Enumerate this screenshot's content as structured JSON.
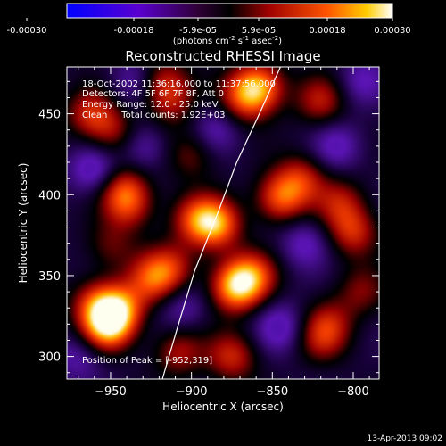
{
  "colorbar": {
    "ticks": [
      "-0.00030",
      "-0.00018",
      "-5.9e-05",
      "5.9e-05",
      "0.00018",
      "0.00030"
    ],
    "units_prefix": "(photons cm",
    "units_exp1": "-2",
    "units_mid": " s",
    "units_exp2": "-1",
    "units_mid2": " asec",
    "units_exp3": "-2",
    "units_suffix": ")",
    "range": [
      -0.0003,
      0.0003
    ]
  },
  "annotations": {
    "line1": "18-Oct-2002 11:36:16.000 to 11:37:56.000",
    "line2": "Detectors: 4F 5F 6F 7F 8F, Att 0",
    "line3": "Energy Range: 12.0 - 25.0 keV",
    "line4": "Clean     Total counts: 1.92E+03",
    "peak": "Position of Peak = [-952,319]"
  },
  "timestamp": "13-Apr-2013 09:02",
  "chart_data": {
    "type": "heatmap",
    "title": "Reconstructed RHESSI Image",
    "xlabel": "Heliocentric X (arcsec)",
    "ylabel": "Heliocentric Y (arcsec)",
    "xlim": [
      -977,
      -784
    ],
    "ylim": [
      286,
      479
    ],
    "xticks": [
      -950,
      -900,
      -850,
      -800
    ],
    "yticks": [
      300,
      350,
      400,
      450
    ],
    "xtick_labels": [
      "−950",
      "−900",
      "−850",
      "−800"
    ],
    "ytick_labels": [
      "300",
      "350",
      "400",
      "450"
    ],
    "colormap": "rhessi-blue-purple-red-yellow-white",
    "peak_position": [
      -952,
      319
    ],
    "limb_curve": [
      [
        -918,
        286
      ],
      [
        -908,
        320
      ],
      [
        -898,
        353
      ],
      [
        -884,
        388
      ],
      [
        -872,
        420
      ],
      [
        -858,
        450
      ],
      [
        -845,
        479
      ]
    ],
    "blobs": [
      {
        "x": -952,
        "y": 319,
        "v": 0.95
      },
      {
        "x": -945,
        "y": 330,
        "v": 0.75
      },
      {
        "x": -960,
        "y": 333,
        "v": 0.45
      },
      {
        "x": -858,
        "y": 467,
        "v": 0.8
      },
      {
        "x": -868,
        "y": 460,
        "v": 0.55
      },
      {
        "x": -885,
        "y": 382,
        "v": 0.85
      },
      {
        "x": -898,
        "y": 385,
        "v": 0.5
      },
      {
        "x": -873,
        "y": 343,
        "v": 0.9
      },
      {
        "x": -862,
        "y": 350,
        "v": 0.6
      },
      {
        "x": -845,
        "y": 398,
        "v": 0.7
      },
      {
        "x": -832,
        "y": 410,
        "v": 0.5
      },
      {
        "x": -924,
        "y": 348,
        "v": 0.6
      },
      {
        "x": -912,
        "y": 355,
        "v": 0.45
      },
      {
        "x": -942,
        "y": 403,
        "v": 0.6
      },
      {
        "x": -938,
        "y": 392,
        "v": 0.4
      },
      {
        "x": -962,
        "y": 450,
        "v": 0.55
      },
      {
        "x": -948,
        "y": 438,
        "v": 0.4
      },
      {
        "x": -912,
        "y": 456,
        "v": 0.35
      },
      {
        "x": -918,
        "y": 470,
        "v": 0.5
      },
      {
        "x": -800,
        "y": 377,
        "v": 0.55
      },
      {
        "x": -808,
        "y": 395,
        "v": 0.45
      },
      {
        "x": -875,
        "y": 300,
        "v": 0.55
      },
      {
        "x": -908,
        "y": 303,
        "v": 0.45
      },
      {
        "x": -815,
        "y": 320,
        "v": 0.4
      },
      {
        "x": -820,
        "y": 310,
        "v": 0.35
      },
      {
        "x": -820,
        "y": 458,
        "v": 0.5
      },
      {
        "x": -795,
        "y": 340,
        "v": 0.35
      },
      {
        "x": -950,
        "y": 368,
        "v": 0.3
      },
      {
        "x": -900,
        "y": 425,
        "v": 0.35
      },
      {
        "x": -960,
        "y": 415,
        "v": -0.45
      },
      {
        "x": -930,
        "y": 430,
        "v": -0.35
      },
      {
        "x": -845,
        "y": 318,
        "v": -0.4
      },
      {
        "x": -830,
        "y": 370,
        "v": -0.35
      },
      {
        "x": -905,
        "y": 330,
        "v": -0.3
      },
      {
        "x": -970,
        "y": 300,
        "v": -0.3
      },
      {
        "x": -810,
        "y": 430,
        "v": -0.35
      },
      {
        "x": -885,
        "y": 440,
        "v": -0.3
      },
      {
        "x": -935,
        "y": 470,
        "v": -0.3
      },
      {
        "x": -795,
        "y": 470,
        "v": -0.3
      }
    ]
  }
}
